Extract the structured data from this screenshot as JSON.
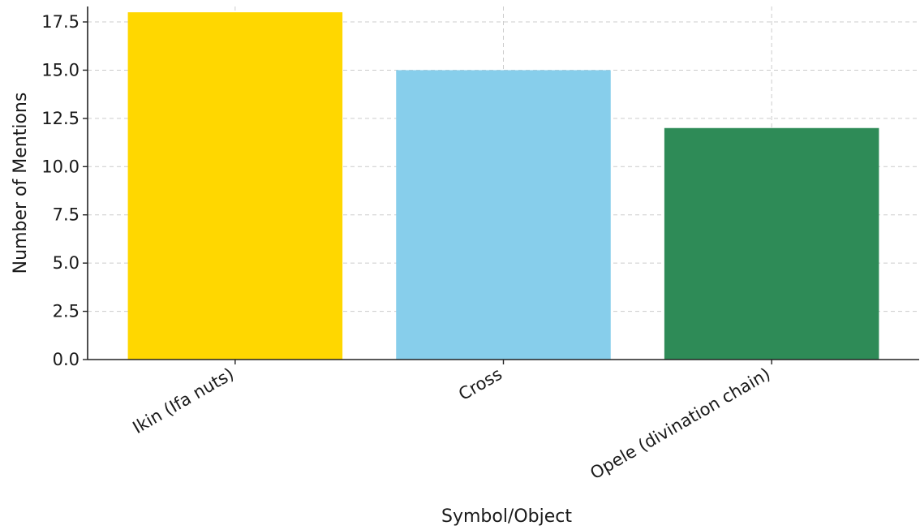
{
  "chart_data": {
    "type": "bar",
    "title": "",
    "xlabel": "Symbol/Object",
    "ylabel": "Number of Mentions",
    "categories": [
      "Ikin (Ifa nuts)",
      "Cross",
      "Opele (divination chain)"
    ],
    "values": [
      18,
      15,
      12
    ],
    "colors": [
      "#FFD700",
      "#87CEEB",
      "#2E8B57"
    ],
    "ylim": [
      0,
      18.3
    ],
    "yticks": [
      "0.0",
      "2.5",
      "5.0",
      "7.5",
      "10.0",
      "12.5",
      "15.0",
      "17.5"
    ],
    "grid": true,
    "legend": "none"
  }
}
